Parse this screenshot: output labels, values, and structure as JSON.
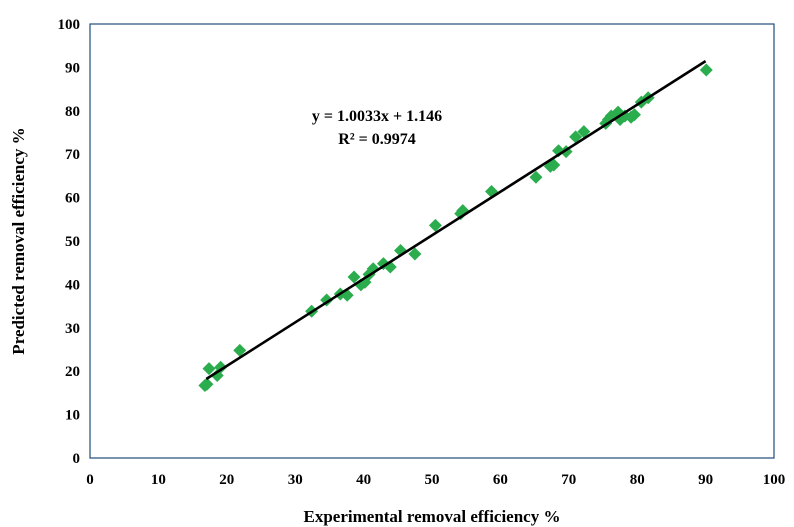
{
  "chart_data": {
    "type": "scatter",
    "xlabel": "Experimental removal efficiency %",
    "ylabel": "Predicted removal efficiency %",
    "xlim": [
      0,
      100
    ],
    "ylim": [
      0,
      100
    ],
    "x_ticks": [
      0,
      10,
      20,
      30,
      40,
      50,
      60,
      70,
      80,
      90,
      100
    ],
    "y_ticks": [
      0,
      10,
      20,
      30,
      40,
      50,
      60,
      70,
      80,
      90,
      100
    ],
    "grid": false,
    "marker_color": "#2bad4e",
    "line_color": "#000000",
    "plot_border_color": "#1f4e79",
    "series": [
      {
        "marker": "diamond",
        "points": [
          [
            16.8,
            16.7
          ],
          [
            17.1,
            17.0
          ],
          [
            17.4,
            20.6
          ],
          [
            18.6,
            19.0
          ],
          [
            19.1,
            20.9
          ],
          [
            21.9,
            24.8
          ],
          [
            32.4,
            33.8
          ],
          [
            34.6,
            36.4
          ],
          [
            36.6,
            37.8
          ],
          [
            37.6,
            37.5
          ],
          [
            38.6,
            41.7
          ],
          [
            39.6,
            39.9
          ],
          [
            40.2,
            40.5
          ],
          [
            40.8,
            42.3
          ],
          [
            41.4,
            43.6
          ],
          [
            42.9,
            44.8
          ],
          [
            43.9,
            44.0
          ],
          [
            45.4,
            47.8
          ],
          [
            47.5,
            47.0
          ],
          [
            50.5,
            53.6
          ],
          [
            54.2,
            56.3
          ],
          [
            54.5,
            57.0
          ],
          [
            58.7,
            61.4
          ],
          [
            65.2,
            64.7
          ],
          [
            67.3,
            67.2
          ],
          [
            67.8,
            67.5
          ],
          [
            68.5,
            70.8
          ],
          [
            69.6,
            70.6
          ],
          [
            71.0,
            74.0
          ],
          [
            72.2,
            75.2
          ],
          [
            75.4,
            77.1
          ],
          [
            75.8,
            78.0
          ],
          [
            76.2,
            78.8
          ],
          [
            77.2,
            79.7
          ],
          [
            77.5,
            78.0
          ],
          [
            78.2,
            78.8
          ],
          [
            79.1,
            78.5
          ],
          [
            79.6,
            79.1
          ],
          [
            80.6,
            82.0
          ],
          [
            81.6,
            83.0
          ],
          [
            90.1,
            89.4
          ]
        ]
      }
    ],
    "trendline": {
      "slope": 1.0033,
      "intercept": 1.146,
      "x_range": [
        17,
        90
      ],
      "equation": "y = 1.0033x + 1.146",
      "r_squared": "R² = 0.9974"
    }
  }
}
